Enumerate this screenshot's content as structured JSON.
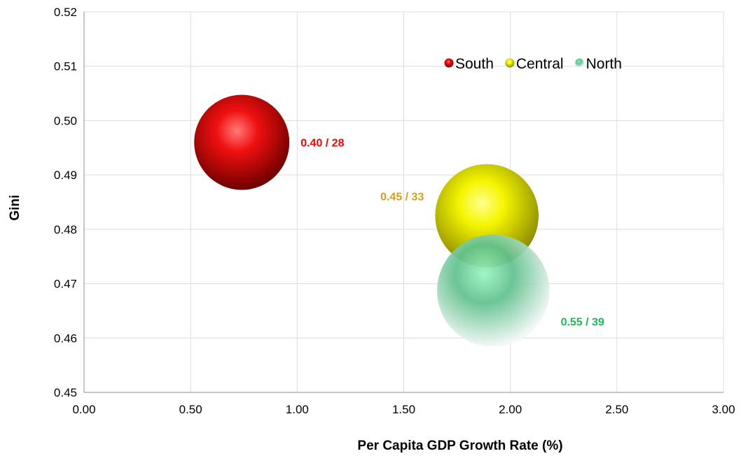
{
  "chart_data": {
    "type": "bubble",
    "xlabel": "Per Capita GDP Growth Rate (%)",
    "ylabel": "Gini",
    "xlim": [
      0,
      3
    ],
    "ylim": [
      0.45,
      0.52
    ],
    "xticks": [
      "0.00",
      "0.50",
      "1.00",
      "1.50",
      "2.00",
      "2.50",
      "3.00"
    ],
    "yticks": [
      "0.45",
      "0.46",
      "0.47",
      "0.48",
      "0.49",
      "0.50",
      "0.51",
      "0.52"
    ],
    "grid": true,
    "legend_position": "top-right",
    "series": [
      {
        "name": "South",
        "x": 0.74,
        "y": 0.496,
        "size": 28,
        "label": "0.40 / 28",
        "color": "#e31a1a",
        "label_color": "#ff0000"
      },
      {
        "name": "Central",
        "x": 1.89,
        "y": 0.4825,
        "size": 33,
        "label": "0.45 / 33",
        "color": "#e6e600",
        "label_color": "#d4a017"
      },
      {
        "name": "North",
        "x": 1.92,
        "y": 0.4687,
        "size": 39,
        "label": "0.55 / 39",
        "color": "#3fb877",
        "label_color": "#1db954"
      }
    ]
  }
}
